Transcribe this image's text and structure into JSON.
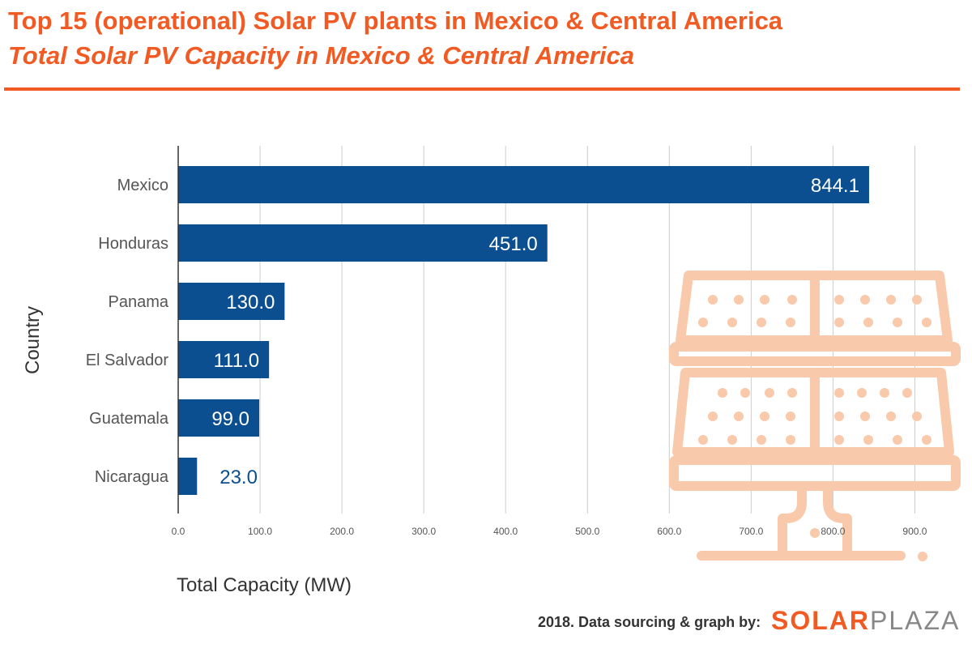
{
  "header": {
    "title": "Top 15 (operational) Solar PV plants in Mexico & Central America",
    "subtitle": "Total Solar PV Capacity in Mexico & Central America"
  },
  "footer": {
    "credit": "2018. Data sourcing & graph by:",
    "logo_solar": "SOLAR",
    "logo_plaza": "PLAZA"
  },
  "colors": {
    "accent": "#f15a22",
    "bar": "#0b4f91",
    "panel_watermark": "#f9c9ab",
    "grid": "#cccccc"
  },
  "decor": {
    "watermark_icon": "solar-panel-icon"
  },
  "chart_data": {
    "type": "bar",
    "orientation": "horizontal",
    "categories": [
      "Mexico",
      "Honduras",
      "Panama",
      "El Salvador",
      "Guatemala",
      "Nicaragua"
    ],
    "values": [
      844.1,
      451.0,
      130.0,
      111.0,
      99.0,
      23.0
    ],
    "data_labels": [
      "844.1",
      "451.0",
      "130.0",
      "111.0",
      "99.0",
      "23.0"
    ],
    "xlabel": "Total Capacity (MW)",
    "ylabel": "Country",
    "xlim": [
      0,
      950
    ],
    "xticks": [
      0,
      100,
      200,
      300,
      400,
      500,
      600,
      700,
      800,
      900
    ],
    "xtick_labels": [
      "0.0",
      "100.0",
      "200.0",
      "300.0",
      "400.0",
      "500.0",
      "600.0",
      "700.0",
      "800.0",
      "900.0"
    ],
    "grid": "vertical",
    "legend": "none"
  }
}
